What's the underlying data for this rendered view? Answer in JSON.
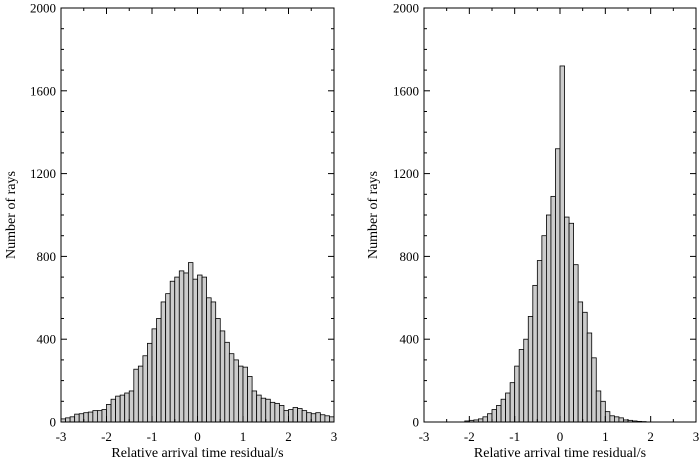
{
  "chart_data": [
    {
      "type": "bar",
      "xlabel": "Relative arrival time residual/s",
      "ylabel": "Number of rays",
      "xlim": [
        -3,
        3
      ],
      "ylim": [
        0,
        2000
      ],
      "xticks": [
        "-3",
        "-2",
        "-1",
        "0",
        "1",
        "2",
        "3"
      ],
      "yticks": [
        "0",
        "400",
        "800",
        "1200",
        "1600",
        "2000"
      ],
      "bar_color": "#cccccc",
      "edge_color": "#000000",
      "bin_width": 0.1,
      "x": [
        -2.95,
        -2.85,
        -2.75,
        -2.65,
        -2.55,
        -2.45,
        -2.35,
        -2.25,
        -2.15,
        -2.05,
        -1.95,
        -1.85,
        -1.75,
        -1.65,
        -1.55,
        -1.45,
        -1.35,
        -1.25,
        -1.15,
        -1.05,
        -0.95,
        -0.85,
        -0.75,
        -0.65,
        -0.55,
        -0.45,
        -0.35,
        -0.25,
        -0.15,
        -0.05,
        0.05,
        0.15,
        0.25,
        0.35,
        0.45,
        0.55,
        0.65,
        0.75,
        0.85,
        0.95,
        1.05,
        1.15,
        1.25,
        1.35,
        1.45,
        1.55,
        1.65,
        1.75,
        1.85,
        1.95,
        2.05,
        2.15,
        2.25,
        2.35,
        2.45,
        2.55,
        2.65,
        2.75,
        2.85,
        2.95
      ],
      "values": [
        15,
        20,
        25,
        38,
        40,
        45,
        48,
        55,
        55,
        60,
        85,
        110,
        125,
        130,
        140,
        150,
        255,
        270,
        320,
        380,
        450,
        500,
        580,
        620,
        680,
        700,
        730,
        720,
        770,
        690,
        710,
        700,
        600,
        580,
        500,
        440,
        385,
        330,
        300,
        270,
        265,
        220,
        150,
        130,
        115,
        110,
        95,
        90,
        80,
        55,
        60,
        70,
        65,
        55,
        45,
        40,
        45,
        35,
        30,
        25
      ]
    },
    {
      "type": "bar",
      "xlabel": "Relative arrival time residual/s",
      "ylabel": "Number of rays",
      "xlim": [
        -3,
        3
      ],
      "ylim": [
        0,
        2000
      ],
      "xticks": [
        "-3",
        "-2",
        "-1",
        "0",
        "1",
        "2",
        "3"
      ],
      "yticks": [
        "0",
        "400",
        "800",
        "1200",
        "1600",
        "2000"
      ],
      "bar_color": "#cccccc",
      "edge_color": "#000000",
      "bin_width": 0.1,
      "x": [
        -2.05,
        -1.95,
        -1.85,
        -1.75,
        -1.65,
        -1.55,
        -1.45,
        -1.35,
        -1.25,
        -1.15,
        -1.05,
        -0.95,
        -0.85,
        -0.75,
        -0.65,
        -0.55,
        -0.45,
        -0.35,
        -0.25,
        -0.15,
        -0.05,
        0.05,
        0.15,
        0.25,
        0.35,
        0.45,
        0.55,
        0.65,
        0.75,
        0.85,
        0.95,
        1.05,
        1.15,
        1.25,
        1.35,
        1.45,
        1.55,
        1.65,
        1.75,
        1.85
      ],
      "values": [
        5,
        8,
        10,
        15,
        25,
        40,
        60,
        80,
        110,
        140,
        190,
        270,
        350,
        400,
        510,
        660,
        780,
        900,
        1000,
        1090,
        1320,
        1720,
        990,
        960,
        760,
        580,
        530,
        430,
        310,
        150,
        100,
        50,
        30,
        25,
        20,
        10,
        8,
        5,
        3,
        2
      ]
    }
  ]
}
